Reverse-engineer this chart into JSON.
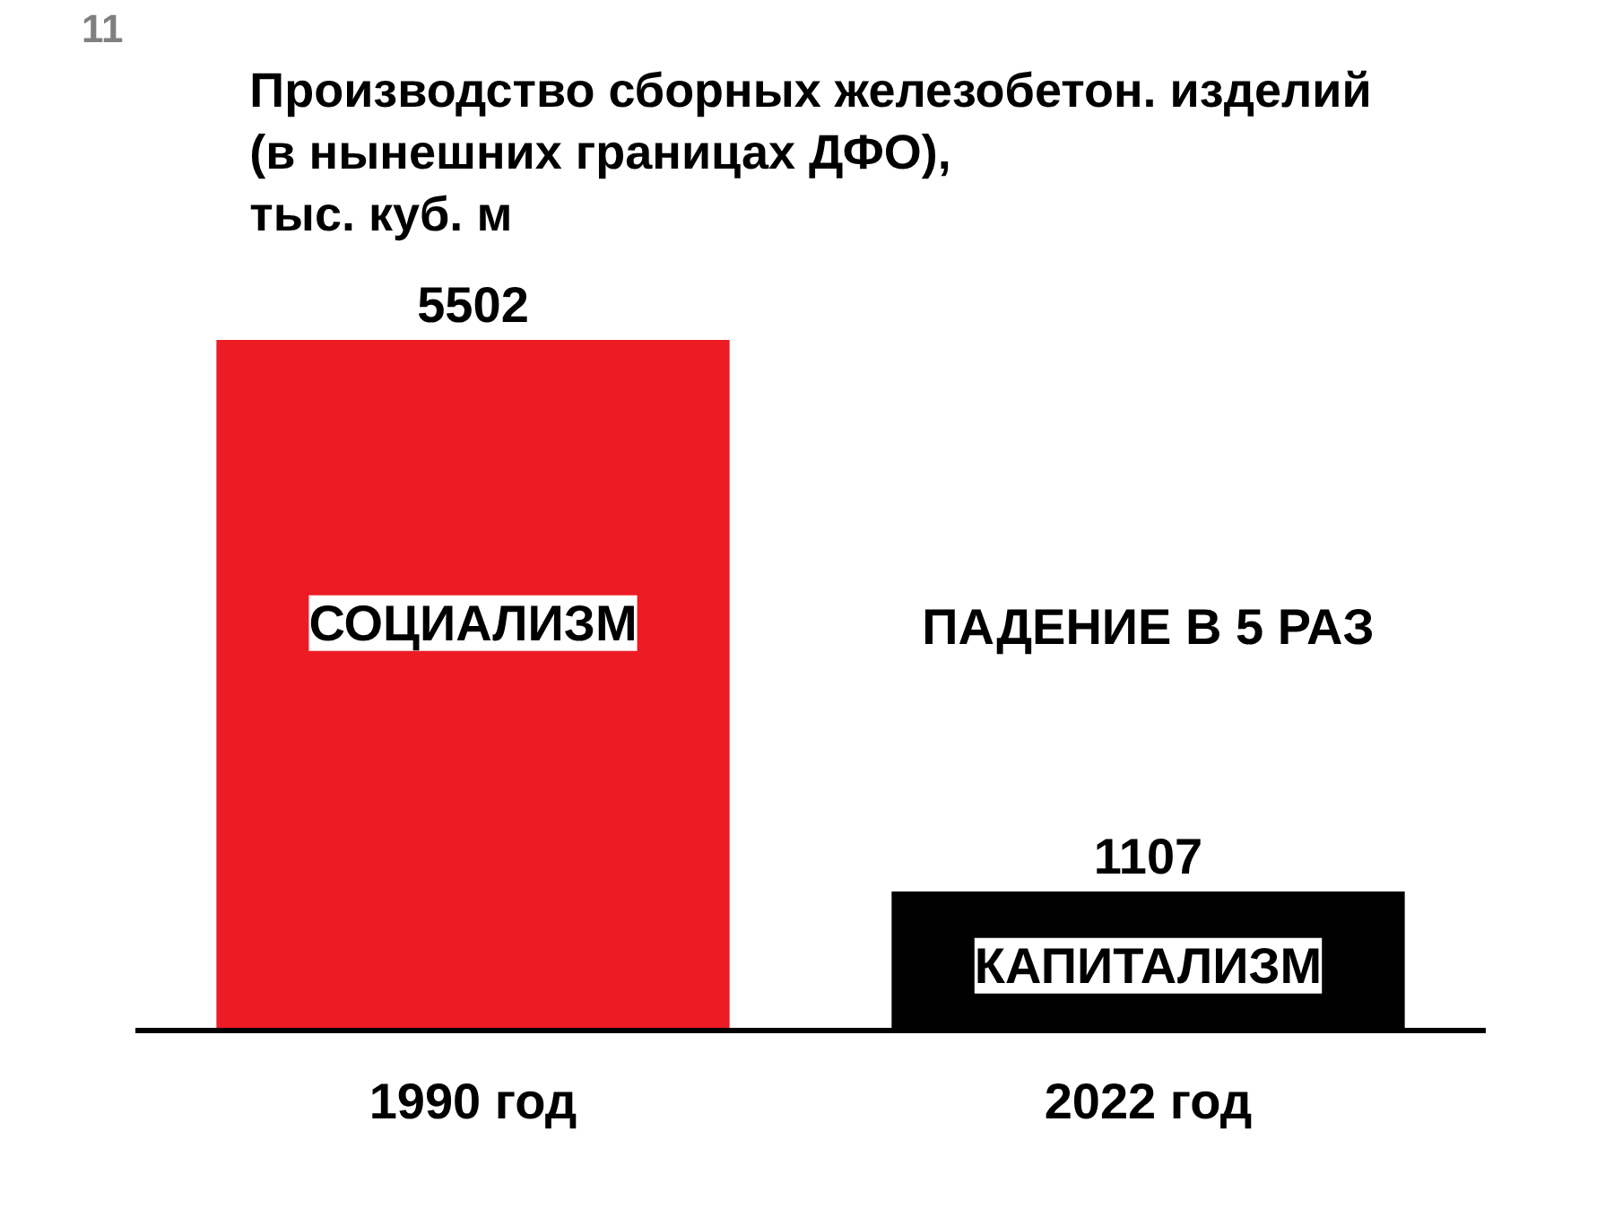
{
  "chart_data": {
    "type": "bar",
    "title": "Производство сборных железобетон. изделий\n(в нынешних границах ДФО),\nтыс. куб. м",
    "categories": [
      "1990 год",
      "2022 год"
    ],
    "values": [
      5502,
      1107
    ],
    "colors": [
      "#ed1c24",
      "#000000"
    ],
    "data_labels": true,
    "grid": false,
    "tick_labels": "x",
    "annotations": [
      "11",
      "СОЦИАЛИЗМ",
      "ПАДЕНИЕ В 5 РАЗ",
      "КАПИТАЛИЗМ"
    ]
  }
}
